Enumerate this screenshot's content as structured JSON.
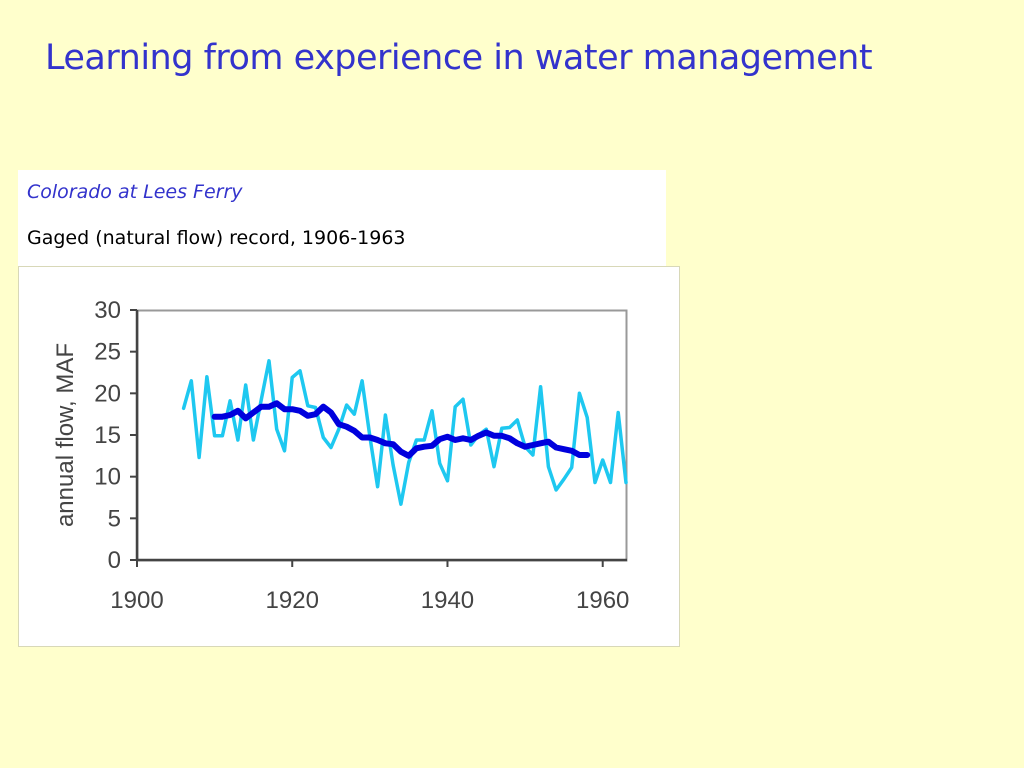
{
  "slide": {
    "title": "Learning from experience in water management"
  },
  "caption": {
    "site": "Colorado at Lees Ferry",
    "record": "Gaged (natural flow) record, 1906-1963"
  },
  "colors": {
    "background": "#ffffcc",
    "title": "#3333cc",
    "annual_series": "#1ec8f0",
    "moving_average_series": "#0000dd",
    "axis": "#444444"
  },
  "chart_data": {
    "type": "line",
    "title": "",
    "xlabel": "",
    "ylabel": "annual flow, MAF",
    "xlim": [
      1900,
      1963
    ],
    "ylim": [
      0,
      30
    ],
    "xticks": [
      1900,
      1920,
      1940,
      1960
    ],
    "yticks": [
      0,
      5,
      10,
      15,
      20,
      25,
      30
    ],
    "grid": false,
    "series": [
      {
        "color": "#1ec8f0",
        "x": [
          1906,
          1907,
          1908,
          1909,
          1910,
          1911,
          1912,
          1913,
          1914,
          1915,
          1916,
          1917,
          1918,
          1919,
          1920,
          1921,
          1922,
          1923,
          1924,
          1925,
          1926,
          1927,
          1928,
          1929,
          1930,
          1931,
          1932,
          1933,
          1934,
          1935,
          1936,
          1937,
          1938,
          1939,
          1940,
          1941,
          1942,
          1943,
          1944,
          1945,
          1946,
          1947,
          1948,
          1949,
          1950,
          1951,
          1952,
          1953,
          1954,
          1955,
          1956,
          1957,
          1958,
          1959,
          1960,
          1961,
          1962,
          1963
        ],
        "y": [
          18.2,
          21.5,
          12.3,
          22.0,
          14.9,
          14.9,
          19.1,
          14.4,
          21.0,
          14.4,
          19.2,
          23.9,
          15.7,
          13.1,
          21.9,
          22.7,
          18.5,
          18.3,
          14.7,
          13.5,
          15.7,
          18.6,
          17.5,
          21.5,
          14.8,
          8.8,
          17.4,
          11.4,
          6.7,
          11.7,
          14.4,
          14.4,
          17.9,
          11.6,
          9.5,
          18.4,
          19.3,
          13.8,
          15.0,
          15.7,
          11.2,
          15.8,
          15.9,
          16.8,
          13.6,
          12.6,
          20.8,
          11.2,
          8.4,
          9.7,
          11.1,
          20.0,
          17.1,
          9.3,
          12.0,
          9.3,
          17.7,
          9.3
        ]
      },
      {
        "color": "#0000dd",
        "x": [
          1910,
          1911,
          1912,
          1913,
          1914,
          1915,
          1916,
          1917,
          1918,
          1919,
          1920,
          1921,
          1922,
          1923,
          1924,
          1925,
          1926,
          1927,
          1928,
          1929,
          1930,
          1931,
          1932,
          1933,
          1934,
          1935,
          1936,
          1937,
          1938,
          1939,
          1940,
          1941,
          1942,
          1943,
          1944,
          1945,
          1946,
          1947,
          1948,
          1949,
          1950,
          1951,
          1952,
          1953,
          1954,
          1955,
          1956,
          1957,
          1958
        ],
        "y": [
          17.2,
          17.2,
          17.4,
          17.9,
          17.0,
          17.7,
          18.4,
          18.4,
          18.8,
          18.1,
          18.1,
          17.9,
          17.3,
          17.5,
          18.4,
          17.7,
          16.3,
          16.0,
          15.5,
          14.7,
          14.7,
          14.4,
          14.0,
          13.9,
          13.0,
          12.5,
          13.4,
          13.6,
          13.7,
          14.5,
          14.8,
          14.4,
          14.6,
          14.4,
          14.9,
          15.3,
          14.9,
          14.9,
          14.6,
          14.0,
          13.6,
          13.8,
          14.0,
          14.2,
          13.5,
          13.3,
          13.1,
          12.6,
          12.6
        ]
      }
    ]
  }
}
